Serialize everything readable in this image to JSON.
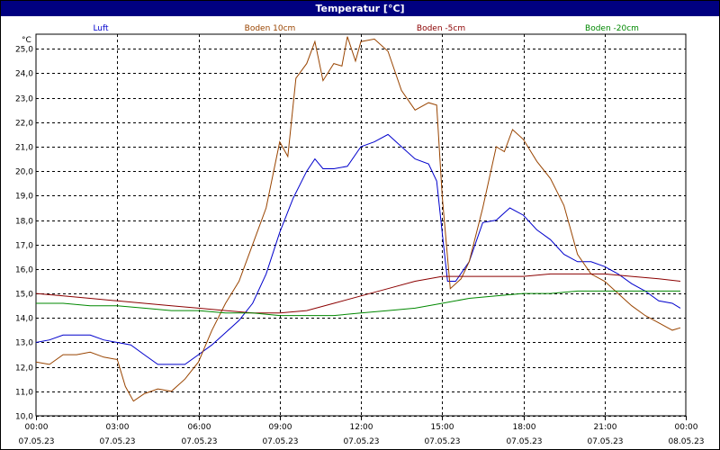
{
  "window": {
    "title": "Temperatur [°C]"
  },
  "chart_data": {
    "type": "line",
    "title": "Temperatur [°C]",
    "ylabel": "°C",
    "ylim": [
      10.0,
      25.6
    ],
    "yticks": [
      "10,0",
      "11,0",
      "12,0",
      "13,0",
      "14,0",
      "15,0",
      "16,0",
      "17,0",
      "18,0",
      "19,0",
      "20,0",
      "21,0",
      "22,0",
      "23,0",
      "24,0",
      "25,0"
    ],
    "xlim": [
      0,
      24
    ],
    "xticks": [
      {
        "hour": 0,
        "time": "00:00",
        "date": "07.05.23"
      },
      {
        "hour": 3,
        "time": "03:00",
        "date": "07.05.23"
      },
      {
        "hour": 6,
        "time": "06:00",
        "date": "07.05.23"
      },
      {
        "hour": 9,
        "time": "09:00",
        "date": "07.05.23"
      },
      {
        "hour": 12,
        "time": "12:00",
        "date": "07.05.23"
      },
      {
        "hour": 15,
        "time": "15:00",
        "date": "07.05.23"
      },
      {
        "hour": 18,
        "time": "18:00",
        "date": "07.05.23"
      },
      {
        "hour": 21,
        "time": "21:00",
        "date": "07.05.23"
      },
      {
        "hour": 24,
        "time": "00:00",
        "date": "08.05.23"
      }
    ],
    "grid": true,
    "legend_placement": "top",
    "series": [
      {
        "name": "Luft",
        "color": "#0000cc",
        "points": [
          [
            0,
            13.0
          ],
          [
            0.5,
            13.1
          ],
          [
            1,
            13.3
          ],
          [
            1.5,
            13.3
          ],
          [
            2,
            13.3
          ],
          [
            2.5,
            13.1
          ],
          [
            3,
            13.0
          ],
          [
            3.5,
            12.9
          ],
          [
            4,
            12.5
          ],
          [
            4.5,
            12.1
          ],
          [
            5,
            12.1
          ],
          [
            5.5,
            12.1
          ],
          [
            6,
            12.5
          ],
          [
            6.5,
            12.9
          ],
          [
            7,
            13.4
          ],
          [
            7.5,
            13.9
          ],
          [
            8,
            14.6
          ],
          [
            8.5,
            15.8
          ],
          [
            9,
            17.5
          ],
          [
            9.5,
            18.9
          ],
          [
            10,
            20.0
          ],
          [
            10.3,
            20.5
          ],
          [
            10.6,
            20.1
          ],
          [
            11,
            20.1
          ],
          [
            11.5,
            20.2
          ],
          [
            12,
            21.0
          ],
          [
            12.5,
            21.2
          ],
          [
            13,
            21.5
          ],
          [
            13.5,
            21.0
          ],
          [
            14,
            20.5
          ],
          [
            14.5,
            20.3
          ],
          [
            14.8,
            19.6
          ],
          [
            15,
            17.5
          ],
          [
            15.2,
            15.5
          ],
          [
            15.5,
            15.5
          ],
          [
            16,
            16.3
          ],
          [
            16.5,
            17.9
          ],
          [
            17,
            18.0
          ],
          [
            17.5,
            18.5
          ],
          [
            18,
            18.2
          ],
          [
            18.5,
            17.6
          ],
          [
            19,
            17.2
          ],
          [
            19.5,
            16.6
          ],
          [
            20,
            16.3
          ],
          [
            20.5,
            16.3
          ],
          [
            21,
            16.1
          ],
          [
            21.5,
            15.8
          ],
          [
            22,
            15.4
          ],
          [
            22.5,
            15.1
          ],
          [
            23,
            14.7
          ],
          [
            23.5,
            14.6
          ],
          [
            23.8,
            14.4
          ]
        ]
      },
      {
        "name": "Boden 10cm",
        "color": "#994400",
        "points": [
          [
            0,
            12.2
          ],
          [
            0.5,
            12.1
          ],
          [
            1,
            12.5
          ],
          [
            1.5,
            12.5
          ],
          [
            2,
            12.6
          ],
          [
            2.5,
            12.4
          ],
          [
            3,
            12.3
          ],
          [
            3.3,
            11.2
          ],
          [
            3.6,
            10.6
          ],
          [
            4,
            10.9
          ],
          [
            4.5,
            11.1
          ],
          [
            5,
            11.0
          ],
          [
            5.5,
            11.5
          ],
          [
            6,
            12.2
          ],
          [
            6.5,
            13.5
          ],
          [
            7,
            14.6
          ],
          [
            7.5,
            15.5
          ],
          [
            8,
            17.0
          ],
          [
            8.5,
            18.5
          ],
          [
            9,
            21.2
          ],
          [
            9.3,
            20.6
          ],
          [
            9.6,
            23.8
          ],
          [
            10,
            24.4
          ],
          [
            10.3,
            25.3
          ],
          [
            10.6,
            23.7
          ],
          [
            11,
            24.4
          ],
          [
            11.3,
            24.3
          ],
          [
            11.5,
            25.5
          ],
          [
            11.8,
            24.5
          ],
          [
            12,
            25.3
          ],
          [
            12.5,
            25.4
          ],
          [
            13,
            24.9
          ],
          [
            13.5,
            23.3
          ],
          [
            14,
            22.5
          ],
          [
            14.5,
            22.8
          ],
          [
            14.8,
            22.7
          ],
          [
            15,
            19.0
          ],
          [
            15.3,
            15.2
          ],
          [
            15.7,
            15.6
          ],
          [
            16,
            16.3
          ],
          [
            16.5,
            18.5
          ],
          [
            17,
            21.0
          ],
          [
            17.3,
            20.8
          ],
          [
            17.6,
            21.7
          ],
          [
            18,
            21.3
          ],
          [
            18.5,
            20.4
          ],
          [
            19,
            19.7
          ],
          [
            19.5,
            18.6
          ],
          [
            20,
            16.6
          ],
          [
            20.5,
            15.8
          ],
          [
            21,
            15.5
          ],
          [
            21.5,
            15.0
          ],
          [
            22,
            14.5
          ],
          [
            22.5,
            14.1
          ],
          [
            23,
            13.8
          ],
          [
            23.5,
            13.5
          ],
          [
            23.8,
            13.6
          ]
        ]
      },
      {
        "name": "Boden -5cm",
        "color": "#8b0000",
        "points": [
          [
            0,
            15.0
          ],
          [
            1,
            14.9
          ],
          [
            2,
            14.8
          ],
          [
            3,
            14.7
          ],
          [
            4,
            14.6
          ],
          [
            5,
            14.5
          ],
          [
            6,
            14.4
          ],
          [
            7,
            14.3
          ],
          [
            8,
            14.2
          ],
          [
            9,
            14.2
          ],
          [
            10,
            14.3
          ],
          [
            11,
            14.6
          ],
          [
            12,
            14.9
          ],
          [
            13,
            15.2
          ],
          [
            14,
            15.5
          ],
          [
            15,
            15.7
          ],
          [
            16,
            15.7
          ],
          [
            17,
            15.7
          ],
          [
            18,
            15.7
          ],
          [
            19,
            15.8
          ],
          [
            20,
            15.8
          ],
          [
            21,
            15.8
          ],
          [
            22,
            15.7
          ],
          [
            23,
            15.6
          ],
          [
            23.8,
            15.5
          ]
        ]
      },
      {
        "name": "Boden -20cm",
        "color": "#008800",
        "points": [
          [
            0,
            14.6
          ],
          [
            1,
            14.6
          ],
          [
            2,
            14.5
          ],
          [
            3,
            14.5
          ],
          [
            4,
            14.4
          ],
          [
            5,
            14.3
          ],
          [
            6,
            14.3
          ],
          [
            7,
            14.2
          ],
          [
            8,
            14.2
          ],
          [
            9,
            14.1
          ],
          [
            10,
            14.1
          ],
          [
            11,
            14.1
          ],
          [
            12,
            14.2
          ],
          [
            13,
            14.3
          ],
          [
            14,
            14.4
          ],
          [
            15,
            14.6
          ],
          [
            16,
            14.8
          ],
          [
            17,
            14.9
          ],
          [
            18,
            15.0
          ],
          [
            19,
            15.0
          ],
          [
            20,
            15.1
          ],
          [
            21,
            15.1
          ],
          [
            22,
            15.1
          ],
          [
            23,
            15.1
          ],
          [
            23.8,
            15.1
          ]
        ]
      }
    ]
  }
}
